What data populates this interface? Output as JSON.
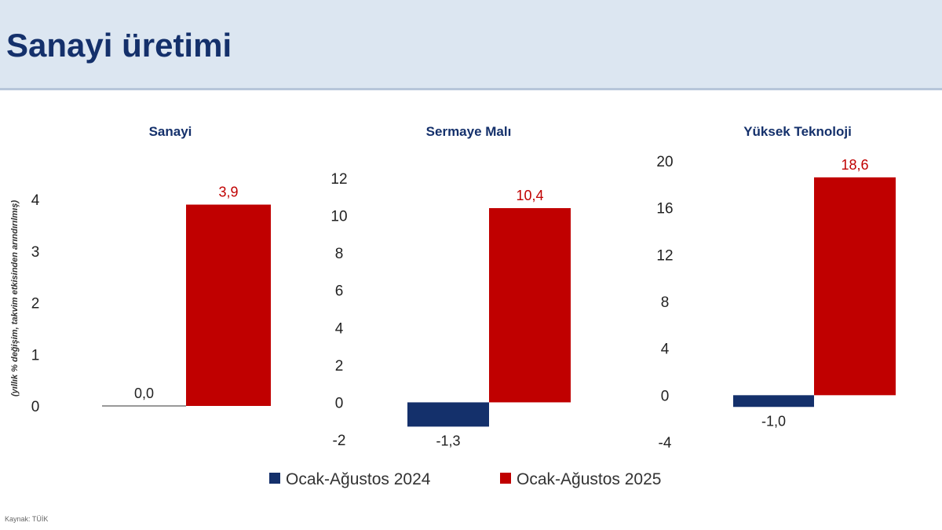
{
  "page_title": "Sanayi üretimi",
  "source": "Kaynak: TÜİK",
  "colors": {
    "series_2024": "#14306b",
    "series_2025": "#c00000",
    "header_bg": "#dce6f1"
  },
  "chart_data": [
    {
      "type": "bar",
      "title": "Sanayi",
      "ylabel": "(yıllık % değişim, takvim etkisinden arındırılmış)",
      "ylim": [
        0,
        4
      ],
      "yticks": [
        0,
        1,
        2,
        3,
        4
      ],
      "categories": [
        "Ocak-Ağustos 2024",
        "Ocak-Ağustos 2025"
      ],
      "values": [
        0.0,
        3.9
      ],
      "labels": [
        "0,0",
        "3,9"
      ]
    },
    {
      "type": "bar",
      "title": "Sermaye Malı",
      "ylim": [
        -2,
        12
      ],
      "yticks": [
        -2,
        0,
        2,
        4,
        6,
        8,
        10,
        12
      ],
      "categories": [
        "Ocak-Ağustos 2024",
        "Ocak-Ağustos 2025"
      ],
      "values": [
        -1.3,
        10.4
      ],
      "labels": [
        "-1,3",
        "10,4"
      ]
    },
    {
      "type": "bar",
      "title": "Yüksek Teknoloji",
      "ylim": [
        -4,
        20
      ],
      "yticks": [
        -4,
        0,
        4,
        8,
        12,
        16,
        20
      ],
      "categories": [
        "Ocak-Ağustos 2024",
        "Ocak-Ağustos 2025"
      ],
      "values": [
        -1.0,
        18.6
      ],
      "labels": [
        "-1,0",
        "18,6"
      ]
    }
  ],
  "legend": [
    "Ocak-Ağustos 2024",
    "Ocak-Ağustos 2025"
  ]
}
